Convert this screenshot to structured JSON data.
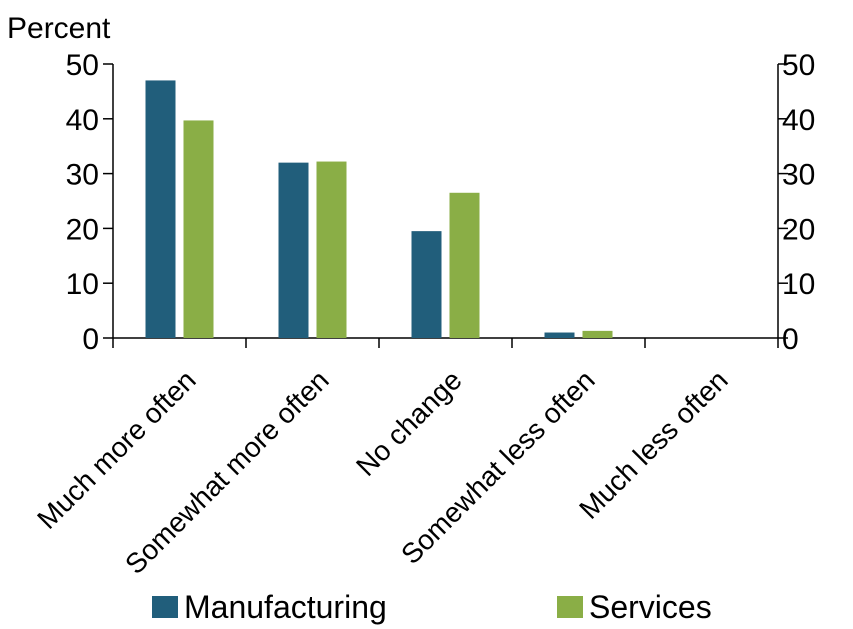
{
  "chart_data": {
    "type": "bar",
    "y_unit_label": "Percent",
    "categories": [
      "Much more often",
      "Somewhat more often",
      "No change",
      "Somewhat less often",
      "Much less often"
    ],
    "series": [
      {
        "name": "Manufacturing",
        "color": "#215e7b",
        "values": [
          47,
          32,
          19.5,
          1,
          0
        ]
      },
      {
        "name": "Services",
        "color": "#8aae46",
        "values": [
          39.7,
          32.2,
          26.5,
          1.3,
          0
        ]
      }
    ],
    "ylim": [
      0,
      50
    ],
    "y_ticks": [
      0,
      10,
      20,
      30,
      40,
      50
    ],
    "axes": {
      "left": true,
      "right": true
    },
    "grid": false,
    "legend_position": "bottom"
  }
}
